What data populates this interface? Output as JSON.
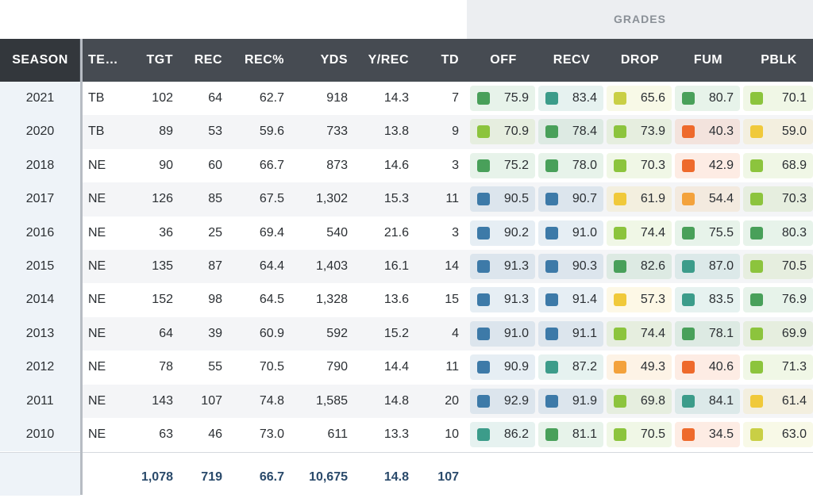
{
  "header": {
    "grades_label": "GRADES",
    "columns": [
      "SEASON",
      "TE…",
      "TGT",
      "REC",
      "REC%",
      "YDS",
      "Y/REC",
      "TD",
      "OFF",
      "RECV",
      "DROP",
      "FUM",
      "PBLK"
    ]
  },
  "grade_colors": {
    "elite": "#3d7aa8",
    "very_good": "#3c9c8a",
    "good": "#49a05a",
    "above_avg": "#8cc43d",
    "average": "#c9cf45",
    "below_avg": "#f0c93a",
    "poor": "#f3a23c",
    "bad": "#ee6a2c"
  },
  "rows": [
    {
      "season": "2021",
      "team": "TB",
      "tgt": "102",
      "rec": "64",
      "rec_pct": "62.7",
      "yds": "918",
      "y_rec": "14.3",
      "td": "7",
      "grades": [
        {
          "v": "75.9",
          "t": "good"
        },
        {
          "v": "83.4",
          "t": "very_good"
        },
        {
          "v": "65.6",
          "t": "average"
        },
        {
          "v": "80.7",
          "t": "good"
        },
        {
          "v": "70.1",
          "t": "above_avg"
        }
      ]
    },
    {
      "season": "2020",
      "team": "TB",
      "tgt": "89",
      "rec": "53",
      "rec_pct": "59.6",
      "yds": "733",
      "y_rec": "13.8",
      "td": "9",
      "grades": [
        {
          "v": "70.9",
          "t": "above_avg"
        },
        {
          "v": "78.4",
          "t": "good"
        },
        {
          "v": "73.9",
          "t": "above_avg"
        },
        {
          "v": "40.3",
          "t": "bad"
        },
        {
          "v": "59.0",
          "t": "below_avg"
        }
      ]
    },
    {
      "season": "2018",
      "team": "NE",
      "tgt": "90",
      "rec": "60",
      "rec_pct": "66.7",
      "yds": "873",
      "y_rec": "14.6",
      "td": "3",
      "grades": [
        {
          "v": "75.2",
          "t": "good"
        },
        {
          "v": "78.0",
          "t": "good"
        },
        {
          "v": "70.3",
          "t": "above_avg"
        },
        {
          "v": "42.9",
          "t": "bad"
        },
        {
          "v": "68.9",
          "t": "above_avg"
        }
      ]
    },
    {
      "season": "2017",
      "team": "NE",
      "tgt": "126",
      "rec": "85",
      "rec_pct": "67.5",
      "yds": "1,302",
      "y_rec": "15.3",
      "td": "11",
      "grades": [
        {
          "v": "90.5",
          "t": "elite"
        },
        {
          "v": "90.7",
          "t": "elite"
        },
        {
          "v": "61.9",
          "t": "below_avg"
        },
        {
          "v": "54.4",
          "t": "poor"
        },
        {
          "v": "70.3",
          "t": "above_avg"
        }
      ]
    },
    {
      "season": "2016",
      "team": "NE",
      "tgt": "36",
      "rec": "25",
      "rec_pct": "69.4",
      "yds": "540",
      "y_rec": "21.6",
      "td": "3",
      "grades": [
        {
          "v": "90.2",
          "t": "elite"
        },
        {
          "v": "91.0",
          "t": "elite"
        },
        {
          "v": "74.4",
          "t": "above_avg"
        },
        {
          "v": "75.5",
          "t": "good"
        },
        {
          "v": "80.3",
          "t": "good"
        }
      ]
    },
    {
      "season": "2015",
      "team": "NE",
      "tgt": "135",
      "rec": "87",
      "rec_pct": "64.4",
      "yds": "1,403",
      "y_rec": "16.1",
      "td": "14",
      "grades": [
        {
          "v": "91.3",
          "t": "elite"
        },
        {
          "v": "90.3",
          "t": "elite"
        },
        {
          "v": "82.6",
          "t": "good"
        },
        {
          "v": "87.0",
          "t": "very_good"
        },
        {
          "v": "70.5",
          "t": "above_avg"
        }
      ]
    },
    {
      "season": "2014",
      "team": "NE",
      "tgt": "152",
      "rec": "98",
      "rec_pct": "64.5",
      "yds": "1,328",
      "y_rec": "13.6",
      "td": "15",
      "grades": [
        {
          "v": "91.3",
          "t": "elite"
        },
        {
          "v": "91.4",
          "t": "elite"
        },
        {
          "v": "57.3",
          "t": "below_avg"
        },
        {
          "v": "83.5",
          "t": "very_good"
        },
        {
          "v": "76.9",
          "t": "good"
        }
      ]
    },
    {
      "season": "2013",
      "team": "NE",
      "tgt": "64",
      "rec": "39",
      "rec_pct": "60.9",
      "yds": "592",
      "y_rec": "15.2",
      "td": "4",
      "grades": [
        {
          "v": "91.0",
          "t": "elite"
        },
        {
          "v": "91.1",
          "t": "elite"
        },
        {
          "v": "74.4",
          "t": "above_avg"
        },
        {
          "v": "78.1",
          "t": "good"
        },
        {
          "v": "69.9",
          "t": "above_avg"
        }
      ]
    },
    {
      "season": "2012",
      "team": "NE",
      "tgt": "78",
      "rec": "55",
      "rec_pct": "70.5",
      "yds": "790",
      "y_rec": "14.4",
      "td": "11",
      "grades": [
        {
          "v": "90.9",
          "t": "elite"
        },
        {
          "v": "87.2",
          "t": "very_good"
        },
        {
          "v": "49.3",
          "t": "poor"
        },
        {
          "v": "40.6",
          "t": "bad"
        },
        {
          "v": "71.3",
          "t": "above_avg"
        }
      ]
    },
    {
      "season": "2011",
      "team": "NE",
      "tgt": "143",
      "rec": "107",
      "rec_pct": "74.8",
      "yds": "1,585",
      "y_rec": "14.8",
      "td": "20",
      "grades": [
        {
          "v": "92.9",
          "t": "elite"
        },
        {
          "v": "91.9",
          "t": "elite"
        },
        {
          "v": "69.8",
          "t": "above_avg"
        },
        {
          "v": "84.1",
          "t": "very_good"
        },
        {
          "v": "61.4",
          "t": "below_avg"
        }
      ]
    },
    {
      "season": "2010",
      "team": "NE",
      "tgt": "63",
      "rec": "46",
      "rec_pct": "73.0",
      "yds": "611",
      "y_rec": "13.3",
      "td": "10",
      "grades": [
        {
          "v": "86.2",
          "t": "very_good"
        },
        {
          "v": "81.1",
          "t": "good"
        },
        {
          "v": "70.5",
          "t": "above_avg"
        },
        {
          "v": "34.5",
          "t": "bad"
        },
        {
          "v": "63.0",
          "t": "average"
        }
      ]
    }
  ],
  "totals": {
    "tgt": "1,078",
    "rec": "719",
    "rec_pct": "66.7",
    "yds": "10,675",
    "y_rec": "14.8",
    "td": "107"
  }
}
